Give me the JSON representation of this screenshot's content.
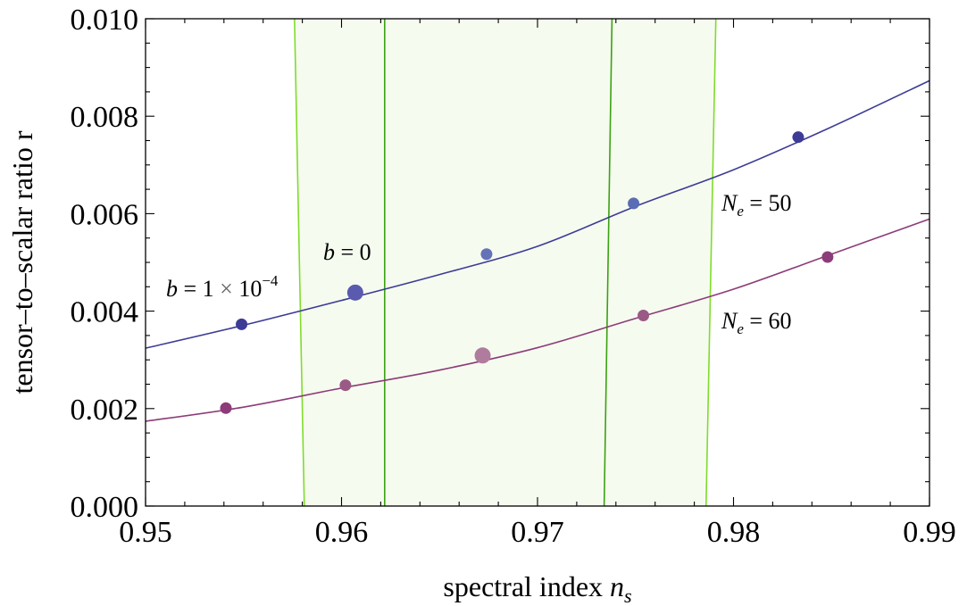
{
  "chart_data": {
    "type": "scatter",
    "xlabel_text": "spectral index ",
    "xlabel_var": "n",
    "xlabel_sub": "s",
    "ylabel": "tensor–to–scalar ratio r",
    "xlim": [
      0.95,
      0.99
    ],
    "ylim": [
      0.0,
      0.01
    ],
    "xticks": [
      "0.95",
      "0.96",
      "0.97",
      "0.98",
      "0.99"
    ],
    "yticks": [
      "0.000",
      "0.002",
      "0.004",
      "0.006",
      "0.008",
      "0.010"
    ],
    "grid": false,
    "bands": [
      {
        "outer": true,
        "bottom": [
          0.9581,
          0.9786
        ],
        "top": [
          0.9576,
          0.9791
        ],
        "color": "#f6fbef",
        "edge": "#7fdc2c"
      },
      {
        "outer": false,
        "bottom": [
          0.9622,
          0.9734
        ],
        "top": [
          0.9622,
          0.9738
        ],
        "color": "#f6fbef",
        "edge": "#3aa212"
      }
    ],
    "series": [
      {
        "name": "N_e = 50",
        "color": "#3c3c96",
        "line": {
          "x": [
            0.95,
            0.955,
            0.96,
            0.965,
            0.97,
            0.975,
            0.98,
            0.985,
            0.99
          ],
          "y": [
            0.00324,
            0.00371,
            0.00422,
            0.00475,
            0.00533,
            0.00615,
            0.0069,
            0.00778,
            0.00873
          ]
        },
        "points": [
          {
            "x": 0.9549,
            "y": 0.00373,
            "size": "small",
            "color": "#3c3c96"
          },
          {
            "x": 0.9607,
            "y": 0.00438,
            "size": "large",
            "color": "#5a5aae"
          },
          {
            "x": 0.9674,
            "y": 0.00517,
            "size": "small",
            "color": "#6472b8"
          },
          {
            "x": 0.9749,
            "y": 0.00621,
            "size": "small",
            "color": "#5a6cb4"
          },
          {
            "x": 0.9833,
            "y": 0.00757,
            "size": "small",
            "color": "#3c3c96"
          }
        ]
      },
      {
        "name": "N_e = 60",
        "color": "#8c3c78",
        "line": {
          "x": [
            0.95,
            0.955,
            0.96,
            0.965,
            0.97,
            0.975,
            0.98,
            0.985,
            0.99
          ],
          "y": [
            0.00174,
            0.00203,
            0.00242,
            0.00279,
            0.00325,
            0.00385,
            0.00445,
            0.00517,
            0.00589
          ]
        },
        "points": [
          {
            "x": 0.9541,
            "y": 0.00201,
            "size": "small",
            "color": "#8c3c78"
          },
          {
            "x": 0.9602,
            "y": 0.00248,
            "size": "small",
            "color": "#9a5a86"
          },
          {
            "x": 0.9672,
            "y": 0.00309,
            "size": "large",
            "color": "#b07c9e"
          },
          {
            "x": 0.9754,
            "y": 0.00391,
            "size": "small",
            "color": "#9a5a86"
          },
          {
            "x": 0.9848,
            "y": 0.00511,
            "size": "small",
            "color": "#8c3c78"
          }
        ]
      }
    ],
    "annotations": {
      "ne50": {
        "var": "N",
        "sub": "e",
        "rest": " = 50"
      },
      "ne60": {
        "var": "N",
        "sub": "e",
        "rest": " = 60"
      },
      "b0": {
        "var": "b",
        "rest": " = 0"
      },
      "b1": {
        "var": "b",
        "rest": " = 1 ",
        "times": "×",
        "base": " 10",
        "exp": "−4"
      }
    }
  }
}
